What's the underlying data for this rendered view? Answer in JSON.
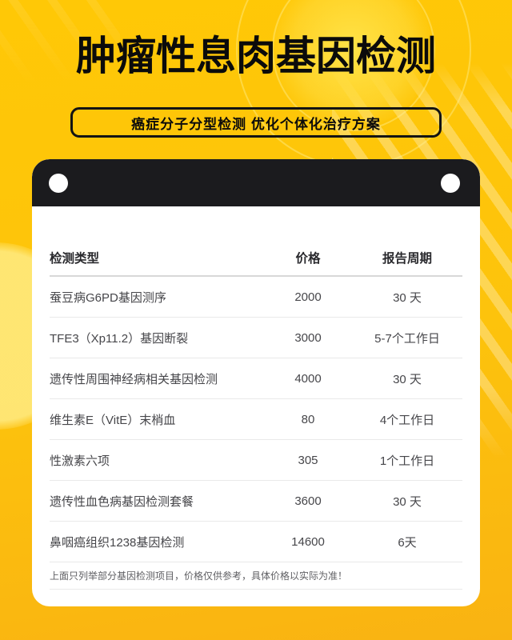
{
  "page": {
    "title": "肿瘤性息肉基因检测",
    "subtitle": "癌症分子分型检测 优化个体化治疗方案"
  },
  "colors": {
    "bg_top": "#ffc806",
    "bg_mid": "#fdc30c",
    "bg_bottom": "#f9b312",
    "bar": "#1b1b1e",
    "card": "#ffffff",
    "header_text": "#29292d",
    "row_text": "#46464a",
    "note_text": "#5f5f63"
  },
  "table": {
    "columns": [
      "检测类型",
      "价格",
      "报告周期"
    ],
    "rows": [
      {
        "name": "蚕豆病G6PD基因测序",
        "price": "2000",
        "period": "30 天"
      },
      {
        "name": "TFE3（Xp11.2）基因断裂",
        "price": "3000",
        "period": "5-7个工作日"
      },
      {
        "name": "遗传性周围神经病相关基因检测",
        "price": "4000",
        "period": "30 天"
      },
      {
        "name": "维生素E（VitE）末梢血",
        "price": "80",
        "period": "4个工作日"
      },
      {
        "name": "性激素六项",
        "price": "305",
        "period": "1个工作日"
      },
      {
        "name": "遗传性血色病基因检测套餐",
        "price": "3600",
        "period": "30 天"
      },
      {
        "name": "鼻咽癌组织1238基因检测",
        "price": "14600",
        "period": "6天"
      }
    ],
    "note": "上面只列举部分基因检测项目，价格仅供参考，具体价格以实际为准！"
  }
}
